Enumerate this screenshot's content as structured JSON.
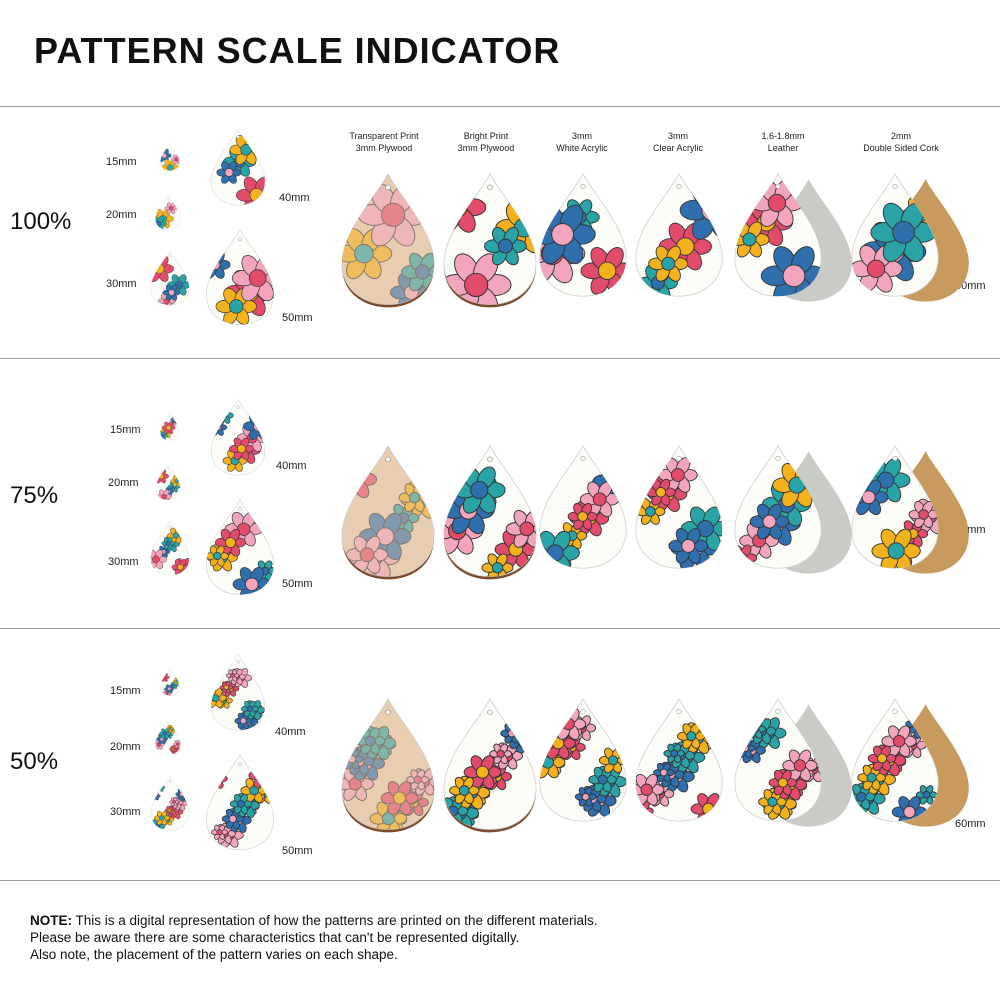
{
  "title": "PATTERN SCALE INDICATOR",
  "materials": [
    {
      "line1": "Transparent Print",
      "line2": "3mm Plywood"
    },
    {
      "line1": "Bright Print",
      "line2": "3mm Plywood"
    },
    {
      "line1": "3mm",
      "line2": "White Acrylic"
    },
    {
      "line1": "3mm",
      "line2": "Clear Acrylic"
    },
    {
      "line1": "1.6-1.8mm",
      "line2": "Leather"
    },
    {
      "line1": "2mm",
      "line2": "Double Sided Cork"
    }
  ],
  "rows": [
    {
      "scale": "100%",
      "s15": "15mm",
      "s20": "20mm",
      "s30": "30mm",
      "s40": "40mm",
      "s50": "50mm",
      "s60": "60mm"
    },
    {
      "scale": "75%",
      "s15": "15mm",
      "s20": "20mm",
      "s30": "30mm",
      "s40": "40mm",
      "s50": "50mm",
      "s60": "60mm"
    },
    {
      "scale": "50%",
      "s15": "15mm",
      "s20": "20mm",
      "s30": "30mm",
      "s40": "40mm",
      "s50": "50mm",
      "s60": "60mm"
    }
  ],
  "note": {
    "label": "NOTE:",
    "line1": " This is a digital representation of how the patterns are printed on the different materials.",
    "line2": "Please be aware there are some characteristics that can't be represented digitally.",
    "line3": "Also note, the placement of the pattern varies on each shape."
  },
  "colors": {
    "accent_red": "#e34b6a",
    "accent_blue": "#2f6fae",
    "accent_yellow": "#f3b21c",
    "accent_pink": "#f2a5bd",
    "accent_teal": "#2aa3a6",
    "wood": "#7a4a2a",
    "leather": "#c9ccc6",
    "cork": "#c89a5e"
  }
}
